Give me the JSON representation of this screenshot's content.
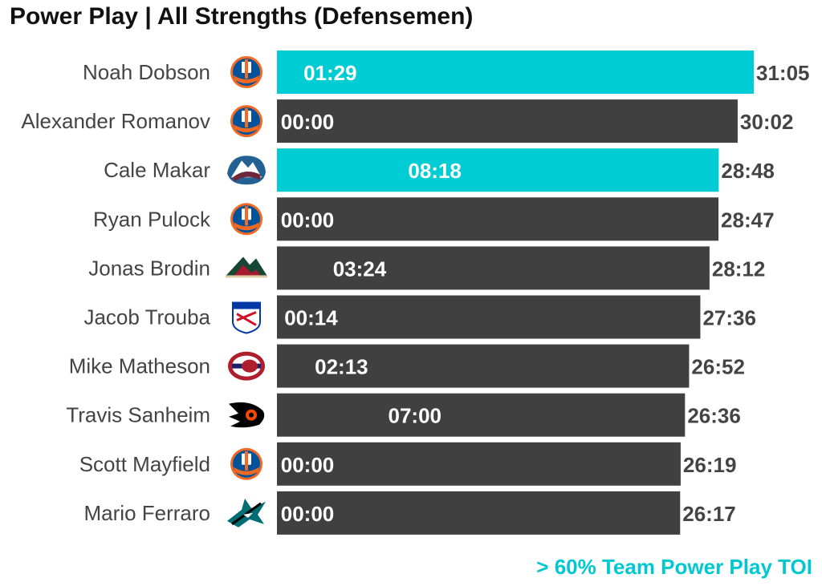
{
  "chart_data": {
    "type": "bar",
    "orientation": "horizontal",
    "title": "Power Play | All Strengths (Defensemen)",
    "footnote": "> 60% Team Power Play TOI",
    "value_unit": "minutes",
    "colors": {
      "highlight": "#00ccd3",
      "default": "#404040",
      "footnote": "#00c8d0"
    },
    "players": [
      {
        "name": "Noah Dobson",
        "team_logo": "islanders-logo",
        "total": "31:05",
        "total_minutes": 31.083,
        "pp": "01:29",
        "highlight": true
      },
      {
        "name": "Alexander Romanov",
        "team_logo": "islanders-logo",
        "total": "30:02",
        "total_minutes": 30.033,
        "pp": "00:00",
        "highlight": false
      },
      {
        "name": "Cale Makar",
        "team_logo": "avalanche-logo",
        "total": "28:48",
        "total_minutes": 28.8,
        "pp": "08:18",
        "highlight": true
      },
      {
        "name": "Ryan Pulock",
        "team_logo": "islanders-logo",
        "total": "28:47",
        "total_minutes": 28.783,
        "pp": "00:00",
        "highlight": false
      },
      {
        "name": "Jonas Brodin",
        "team_logo": "wild-logo",
        "total": "28:12",
        "total_minutes": 28.2,
        "pp": "03:24",
        "highlight": false
      },
      {
        "name": "Jacob Trouba",
        "team_logo": "rangers-logo",
        "total": "27:36",
        "total_minutes": 27.6,
        "pp": "00:14",
        "highlight": false
      },
      {
        "name": "Mike Matheson",
        "team_logo": "canadiens-logo",
        "total": "26:52",
        "total_minutes": 26.867,
        "pp": "02:13",
        "highlight": false
      },
      {
        "name": "Travis Sanheim",
        "team_logo": "flyers-logo",
        "total": "26:36",
        "total_minutes": 26.6,
        "pp": "07:00",
        "highlight": false
      },
      {
        "name": "Scott Mayfield",
        "team_logo": "islanders-logo",
        "total": "26:19",
        "total_minutes": 26.317,
        "pp": "00:00",
        "highlight": false
      },
      {
        "name": "Mario Ferraro",
        "team_logo": "sharks-logo",
        "total": "26:17",
        "total_minutes": 26.283,
        "pp": "00:00",
        "highlight": false
      }
    ]
  }
}
